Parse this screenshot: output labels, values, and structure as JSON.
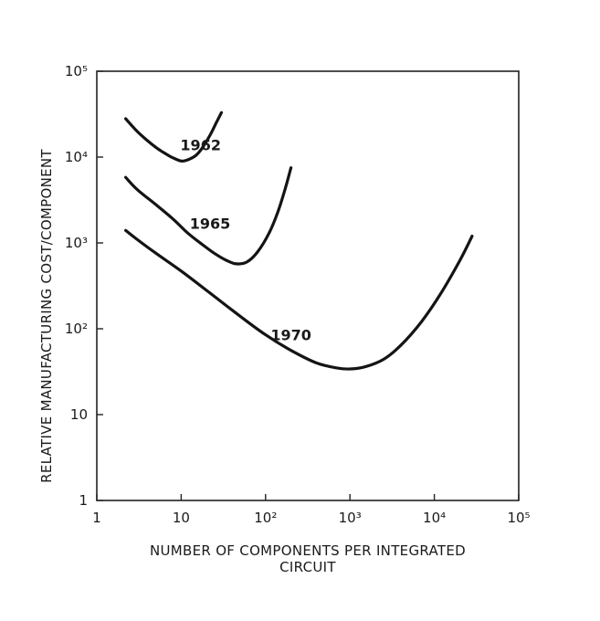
{
  "chart_data": {
    "type": "line",
    "title": "",
    "xlabel": "NUMBER OF COMPONENTS PER INTEGRATED",
    "xlabel_line2": "CIRCUIT",
    "ylabel": "RELATIVE MANUFACTURING COST/COMPONENT",
    "x_scale": "log",
    "y_scale": "log",
    "xlim": [
      1,
      100000
    ],
    "ylim": [
      1,
      100000
    ],
    "grid": false,
    "x_ticks": [
      {
        "value": 1,
        "label": "1"
      },
      {
        "value": 10,
        "label": "10"
      },
      {
        "value": 100,
        "label": "10²"
      },
      {
        "value": 1000,
        "label": "10³"
      },
      {
        "value": 10000,
        "label": "10⁴"
      },
      {
        "value": 100000,
        "label": "10⁵"
      }
    ],
    "y_ticks": [
      {
        "value": 1,
        "label": "1"
      },
      {
        "value": 10,
        "label": "10"
      },
      {
        "value": 100,
        "label": "10²"
      },
      {
        "value": 1000,
        "label": "10³"
      },
      {
        "value": 10000,
        "label": "10⁴"
      },
      {
        "value": 100000,
        "label": "10⁵"
      }
    ],
    "series": [
      {
        "name": "1962",
        "x": [
          2.2,
          3,
          4,
          5,
          6,
          7,
          8,
          10,
          12,
          15,
          18,
          22,
          26,
          30
        ],
        "y": [
          28000,
          20000,
          15500,
          13000,
          11500,
          10500,
          9800,
          9000,
          9300,
          10500,
          13000,
          18000,
          25000,
          33000
        ]
      },
      {
        "name": "1965",
        "x": [
          2.2,
          3,
          5,
          8,
          12,
          18,
          25,
          35,
          45,
          60,
          80,
          110,
          140,
          170,
          200
        ],
        "y": [
          5800,
          4200,
          2800,
          1900,
          1300,
          950,
          750,
          620,
          570,
          600,
          780,
          1300,
          2300,
          4200,
          7500
        ]
      },
      {
        "name": "1970",
        "x": [
          2.2,
          3,
          5,
          10,
          20,
          50,
          100,
          200,
          400,
          700,
          1000,
          1500,
          2500,
          4000,
          7000,
          12000,
          20000,
          28000
        ],
        "y": [
          1400,
          1100,
          760,
          470,
          280,
          140,
          85,
          56,
          40,
          35,
          34,
          36,
          44,
          64,
          120,
          260,
          620,
          1200
        ]
      }
    ],
    "annotations": [
      {
        "text": "1962",
        "x": 17,
        "y": 14000
      },
      {
        "text": "1965",
        "x": 22,
        "y": 1700
      },
      {
        "text": "1970",
        "x": 200,
        "y": 85
      }
    ]
  }
}
